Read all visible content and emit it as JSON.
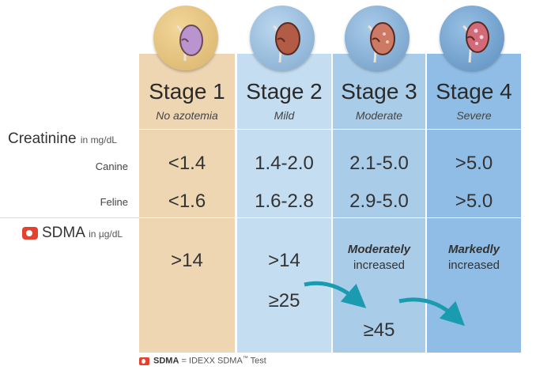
{
  "creatinine": {
    "label": "Creatinine",
    "unit": "in mg/dL",
    "canine": "Canine",
    "feline": "Feline"
  },
  "sdma": {
    "label": "SDMA",
    "unit": "in µg/dL"
  },
  "stages": [
    {
      "title": "Stage 1",
      "severity": "No azotemia",
      "canine": "<1.4",
      "feline": "<1.6",
      "sdma": ">14"
    },
    {
      "title": "Stage 2",
      "severity": "Mild",
      "canine": "1.4-2.0",
      "feline": "1.6-2.8",
      "sdma": ">14",
      "sdma_extra": "≥25"
    },
    {
      "title": "Stage 3",
      "severity": "Moderate",
      "canine": "2.1-5.0",
      "feline": "2.9-5.0",
      "sdma_em": "Moderately",
      "sdma_text": "increased",
      "sdma_extra": "≥45"
    },
    {
      "title": "Stage 4",
      "severity": "Severe",
      "canine": ">5.0",
      "feline": ">5.0",
      "sdma_em": "Markedly",
      "sdma_text": "increased"
    }
  ],
  "footer": {
    "brand": "SDMA",
    "equals": "= IDEXX SDMA",
    "tm": "™",
    "rest": "Test"
  },
  "colors": {
    "stage1": "#efd6b3",
    "stage2": "#c4ddf0",
    "stage3": "#a9cce9",
    "stage4": "#8fbde5",
    "arrow": "#1a9bb0",
    "logo": "#e3422e"
  },
  "icons": [
    "kidney-icon",
    "sdma-logo-icon",
    "arrow-icon"
  ]
}
